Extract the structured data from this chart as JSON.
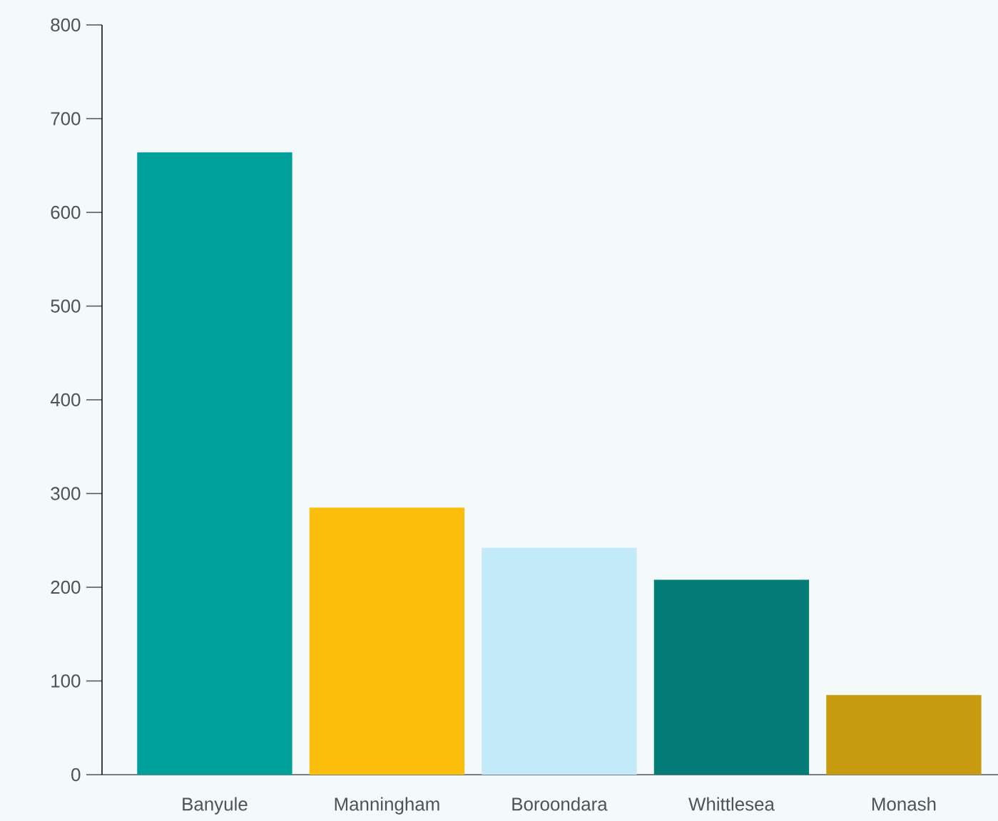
{
  "chart_data": {
    "type": "bar",
    "categories": [
      "Banyule",
      "Manningham",
      "Boroondara",
      "Whittlesea",
      "Monash"
    ],
    "values": [
      664,
      285,
      242,
      208,
      85
    ],
    "colors": [
      "#00a19a",
      "#fbbe0d",
      "#c3eaf8",
      "#047d79",
      "#c99b10"
    ],
    "ylim": [
      0,
      800
    ],
    "yticks": [
      0,
      100,
      200,
      300,
      400,
      500,
      600,
      700,
      800
    ],
    "grid": false,
    "legend": false
  }
}
